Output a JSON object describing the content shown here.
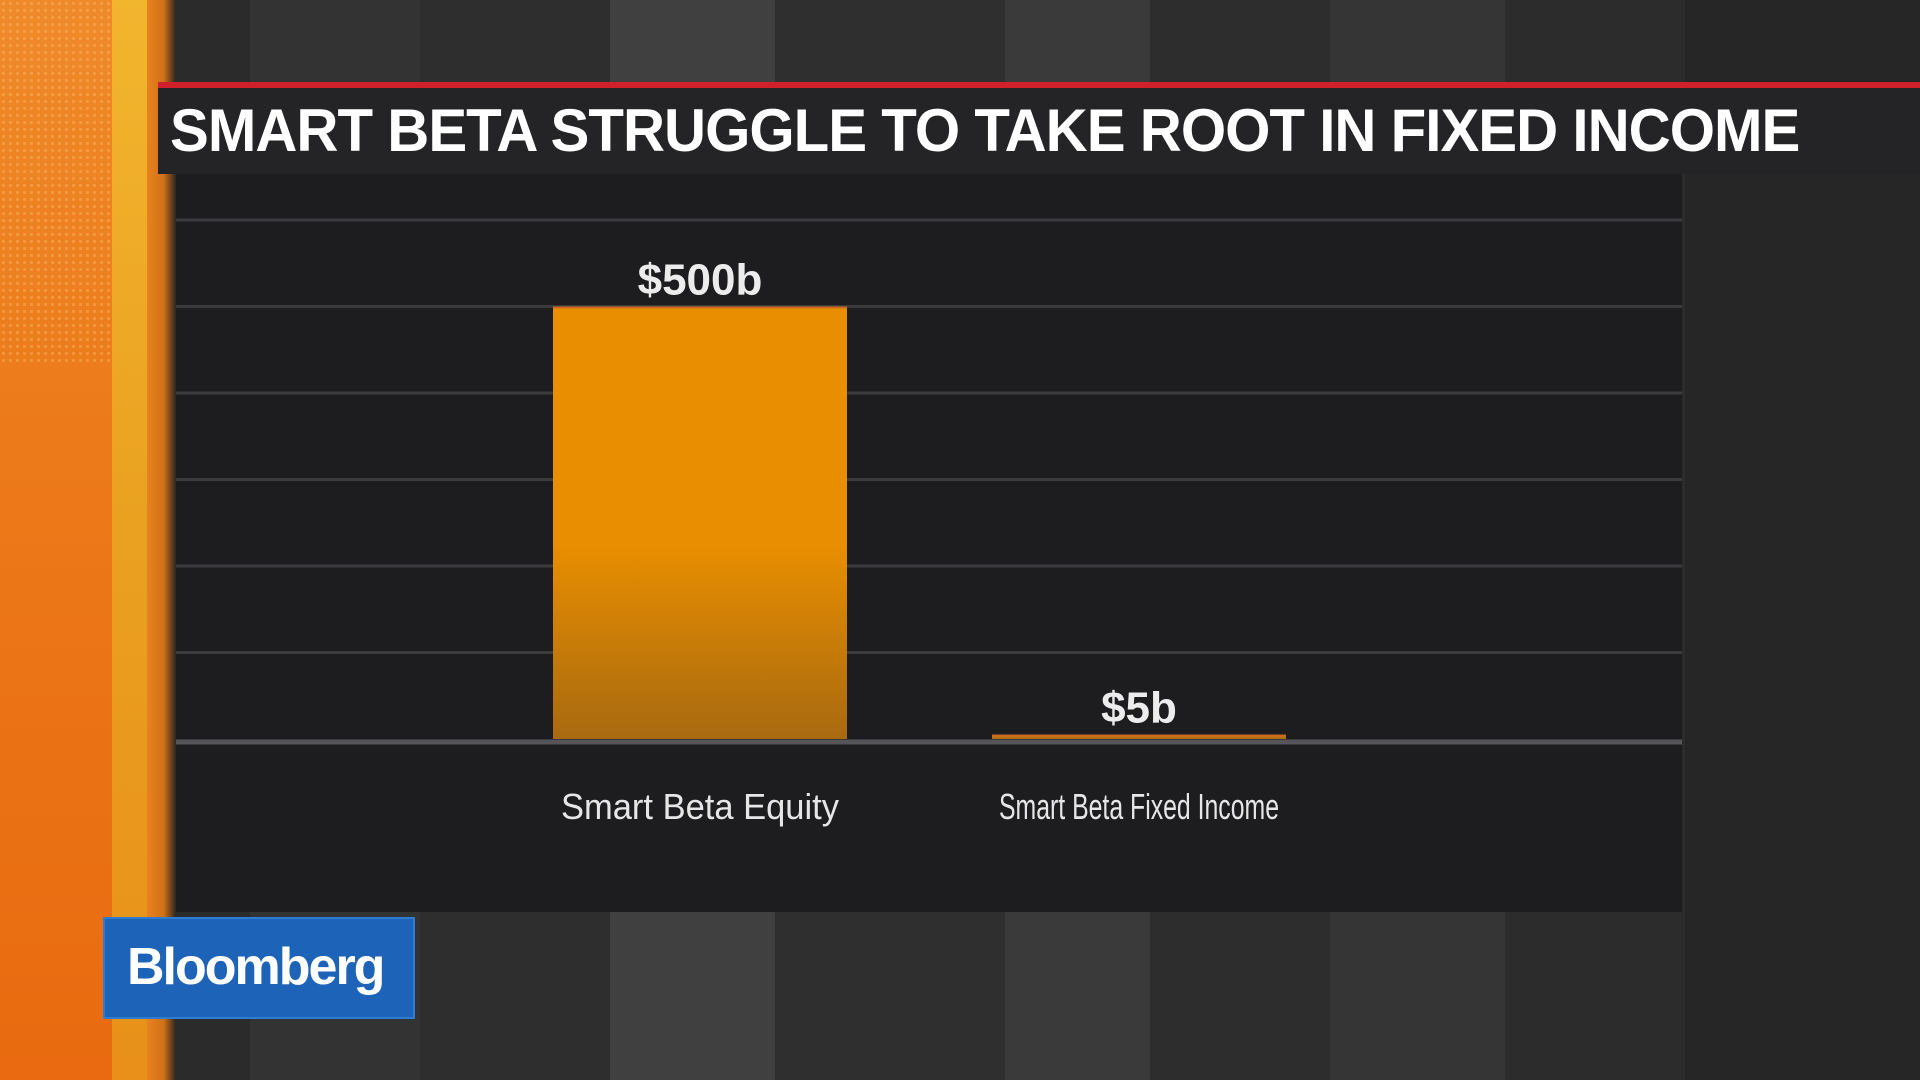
{
  "title": "SMART BETA STRUGGLE TO TAKE ROOT IN FIXED INCOME",
  "logo": "Bloomberg",
  "colors": {
    "bar": "#e98e00",
    "title_accent": "#d0202a",
    "logo_bg": "#1d63b8",
    "panel_bg": "#1d1d20"
  },
  "chart_data": {
    "type": "bar",
    "categories": [
      "Smart Beta Equity",
      "Smart Beta Fixed Income"
    ],
    "values": [
      500,
      5
    ],
    "data_labels": [
      "$500b",
      "$5b"
    ],
    "ylim": [
      0,
      600
    ],
    "grid": true,
    "legend": "none"
  }
}
